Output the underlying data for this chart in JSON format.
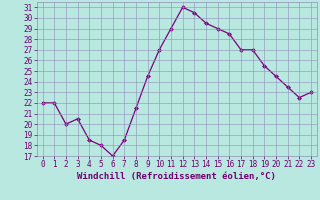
{
  "x": [
    0,
    1,
    2,
    3,
    4,
    5,
    6,
    7,
    8,
    9,
    10,
    11,
    12,
    13,
    14,
    15,
    16,
    17,
    18,
    19,
    20,
    21,
    22,
    23
  ],
  "y": [
    22,
    22,
    20,
    20.5,
    18.5,
    18,
    17,
    18.5,
    21.5,
    24.5,
    27,
    29,
    31,
    30.5,
    29.5,
    29,
    28.5,
    27,
    27,
    25.5,
    24.5,
    23.5,
    22.5,
    23
  ],
  "line_color": "#800080",
  "marker": "D",
  "marker_size": 2.0,
  "line_width": 0.9,
  "bg_color": "#B8E8E0",
  "grid_color": "#9090B8",
  "xlabel": "Windchill (Refroidissement éolien,°C)",
  "xlabel_fontsize": 6.5,
  "xlabel_color": "#700070",
  "tick_color": "#700070",
  "tick_fontsize": 5.5,
  "ylim": [
    17,
    31.5
  ],
  "yticks": [
    17,
    18,
    19,
    20,
    21,
    22,
    23,
    24,
    25,
    26,
    27,
    28,
    29,
    30,
    31
  ],
  "xlim": [
    -0.5,
    23.5
  ],
  "xticks": [
    0,
    1,
    2,
    3,
    4,
    5,
    6,
    7,
    8,
    9,
    10,
    11,
    12,
    13,
    14,
    15,
    16,
    17,
    18,
    19,
    20,
    21,
    22,
    23
  ]
}
